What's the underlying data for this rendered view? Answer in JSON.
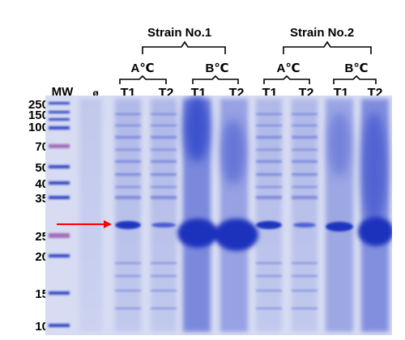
{
  "strains": [
    {
      "label": "Strain No.1",
      "temps": [
        "A℃",
        "B℃"
      ]
    },
    {
      "label": "Strain No.2",
      "temps": [
        "A℃",
        "B℃"
      ]
    }
  ],
  "lanes": [
    "MW",
    "ø",
    "T1",
    "T2",
    "T1",
    "T2",
    "T1",
    "T2",
    "T1",
    "T2"
  ],
  "mw_markers": [
    "250",
    "150",
    "100",
    "70",
    "50",
    "40",
    "35",
    "25",
    "20",
    "15",
    "10"
  ],
  "colors": {
    "gel_background": "#d7dcf2",
    "band": "#2a40c8",
    "marker_pink": "#a070b8",
    "arrow": "#ff0000"
  },
  "annotations": {
    "arrow_target": "27 kDa band"
  }
}
